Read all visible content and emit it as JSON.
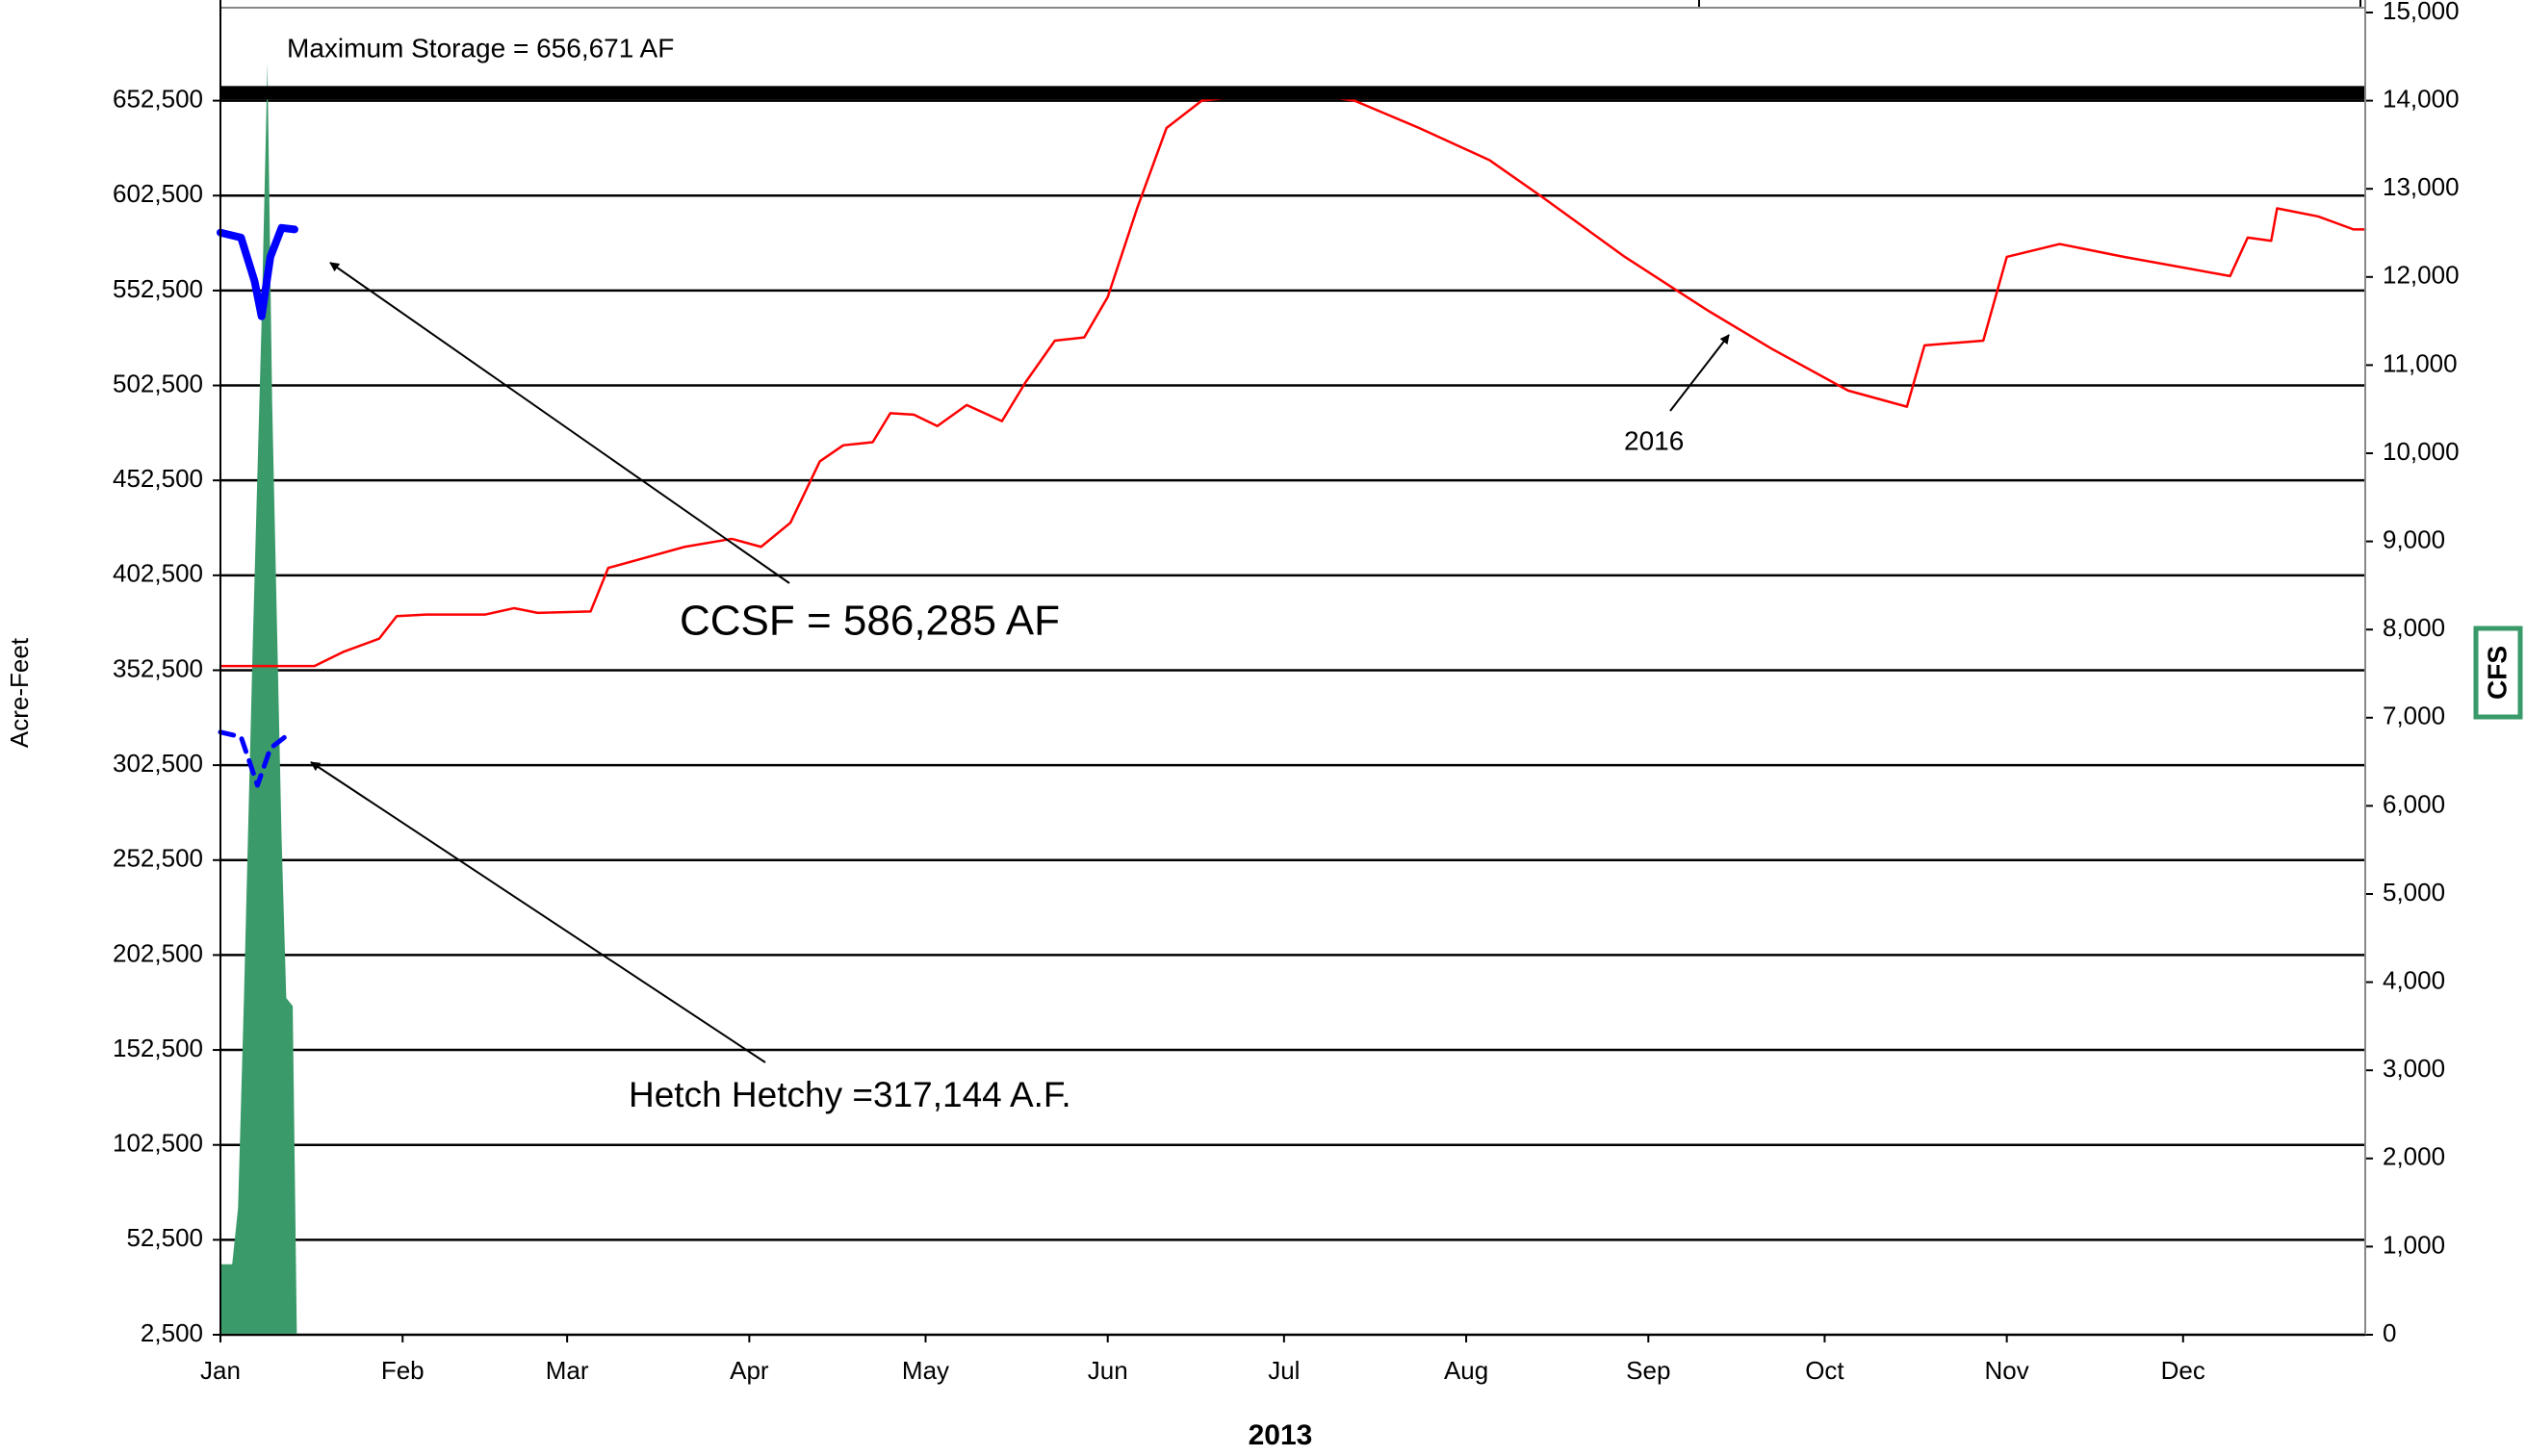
{
  "chart_data": {
    "type": "line",
    "x_label": "2013",
    "y_label": "Acre-Feet",
    "y2_label": "CFS",
    "xlim": [
      0,
      365
    ],
    "xticks": [
      {
        "value": 0,
        "label": "Jan"
      },
      {
        "value": 31,
        "label": "Feb"
      },
      {
        "value": 59,
        "label": "Mar"
      },
      {
        "value": 90,
        "label": "Apr"
      },
      {
        "value": 120,
        "label": "May"
      },
      {
        "value": 151,
        "label": "Jun"
      },
      {
        "value": 181,
        "label": "Jul"
      },
      {
        "value": 212,
        "label": "Aug"
      },
      {
        "value": 243,
        "label": "Sep"
      },
      {
        "value": 273,
        "label": "Oct"
      },
      {
        "value": 304,
        "label": "Nov"
      },
      {
        "value": 334,
        "label": "Dec"
      }
    ],
    "ylim": [
      2500,
      698929
    ],
    "yticks": [
      {
        "value": 2500,
        "label": "2,500"
      },
      {
        "value": 52500,
        "label": "52,500"
      },
      {
        "value": 102500,
        "label": "102,500"
      },
      {
        "value": 152500,
        "label": "152,500"
      },
      {
        "value": 202500,
        "label": "202,500"
      },
      {
        "value": 252500,
        "label": "252,500"
      },
      {
        "value": 302500,
        "label": "302,500"
      },
      {
        "value": 352500,
        "label": "352,500"
      },
      {
        "value": 402500,
        "label": "402,500"
      },
      {
        "value": 452500,
        "label": "452,500"
      },
      {
        "value": 502500,
        "label": "502,500"
      },
      {
        "value": 552500,
        "label": "552,500"
      },
      {
        "value": 602500,
        "label": "602,500"
      },
      {
        "value": 652500,
        "label": "652,500"
      }
    ],
    "y2lim": [
      0,
      15000
    ],
    "y2ticks": [
      0,
      {
        "value": 1000,
        "label": "1,000"
      },
      {
        "value": 2000,
        "label": "2,000"
      },
      {
        "value": 3000,
        "label": "3,000"
      },
      {
        "value": 4000,
        "label": "4,000"
      },
      {
        "value": 5000,
        "label": "5,000"
      },
      {
        "value": 6000,
        "label": "6,000"
      },
      {
        "value": 7000,
        "label": "7,000"
      },
      {
        "value": 8000,
        "label": "8,000"
      },
      {
        "value": 9000,
        "label": "9,000"
      },
      {
        "value": 10000,
        "label": "10,000"
      },
      {
        "value": 11000,
        "label": "11,000"
      },
      {
        "value": 12000,
        "label": "12,000"
      },
      {
        "value": 13000,
        "label": "13,000"
      },
      {
        "value": 14000,
        "label": "14,000"
      },
      {
        "value": {
          "value": 15000,
          "label": "15,000"
        },
        "label": "15,000"
      }
    ],
    "grid": true,
    "max_storage": 656671,
    "max_storage_color": "#000000",
    "annotations": [
      "Maximum  Storage = 656,671 AF",
      "CCSF = 586,285 AF",
      "Hetch Hetchy =317,144 A.F."
    ],
    "series": [
      {
        "name": "2016",
        "color": "#ff0000",
        "style": "solid",
        "x": [
          0,
          16,
          21,
          27,
          30,
          35,
          45,
          50,
          54,
          63,
          66,
          72,
          79,
          87,
          92,
          97,
          102,
          106,
          111,
          114,
          118,
          122,
          127,
          133,
          137,
          142,
          147,
          151,
          156,
          161,
          167,
          182,
          193,
          204,
          216,
          225,
          239,
          253,
          264,
          277,
          287,
          290,
          300,
          304,
          313,
          324,
          342,
          345,
          349,
          350,
          357,
          363,
          365
        ],
        "values": [
          354700,
          354700,
          362300,
          369100,
          381000,
          381800,
          381800,
          385200,
          382700,
          383500,
          406400,
          411500,
          417500,
          421700,
          417500,
          430200,
          462500,
          471000,
          472600,
          487900,
          487100,
          481100,
          492200,
          483700,
          504100,
          526100,
          527800,
          549100,
          595800,
          638100,
          652500,
          657600,
          652500,
          638100,
          621100,
          601600,
          570200,
          542200,
          521800,
          499800,
          491300,
          523600,
          526100,
          570200,
          577000,
          570200,
          560100,
          580400,
          578700,
          595800,
          591500,
          584700,
          584700
        ]
      },
      {
        "color": "#0000ff",
        "style": "solid",
        "x": [
          0,
          3.5,
          5.8,
          7,
          8.5,
          10.4,
          12.6
        ],
        "values": [
          583000,
          580400,
          557500,
          538900,
          570200,
          585500,
          584700
        ]
      },
      {
        "color": "#0000ff",
        "style": "dashed",
        "x": [
          0,
          3.5,
          6.3,
          8.5,
          11
        ],
        "values": [
          319900,
          317400,
          291900,
          311400,
          317400
        ]
      },
      {
        "color": "#3a9a6a",
        "style": "area",
        "axis": "y2",
        "x": [
          0,
          2,
          3,
          4,
          5.5,
          7,
          8,
          8.8,
          10.4,
          11.2,
          12.3,
          13,
          365
        ],
        "values": [
          800,
          800,
          1440,
          3820,
          7840,
          11490,
          14420,
          10580,
          5650,
          3820,
          3730,
          0,
          0
        ]
      }
    ]
  }
}
